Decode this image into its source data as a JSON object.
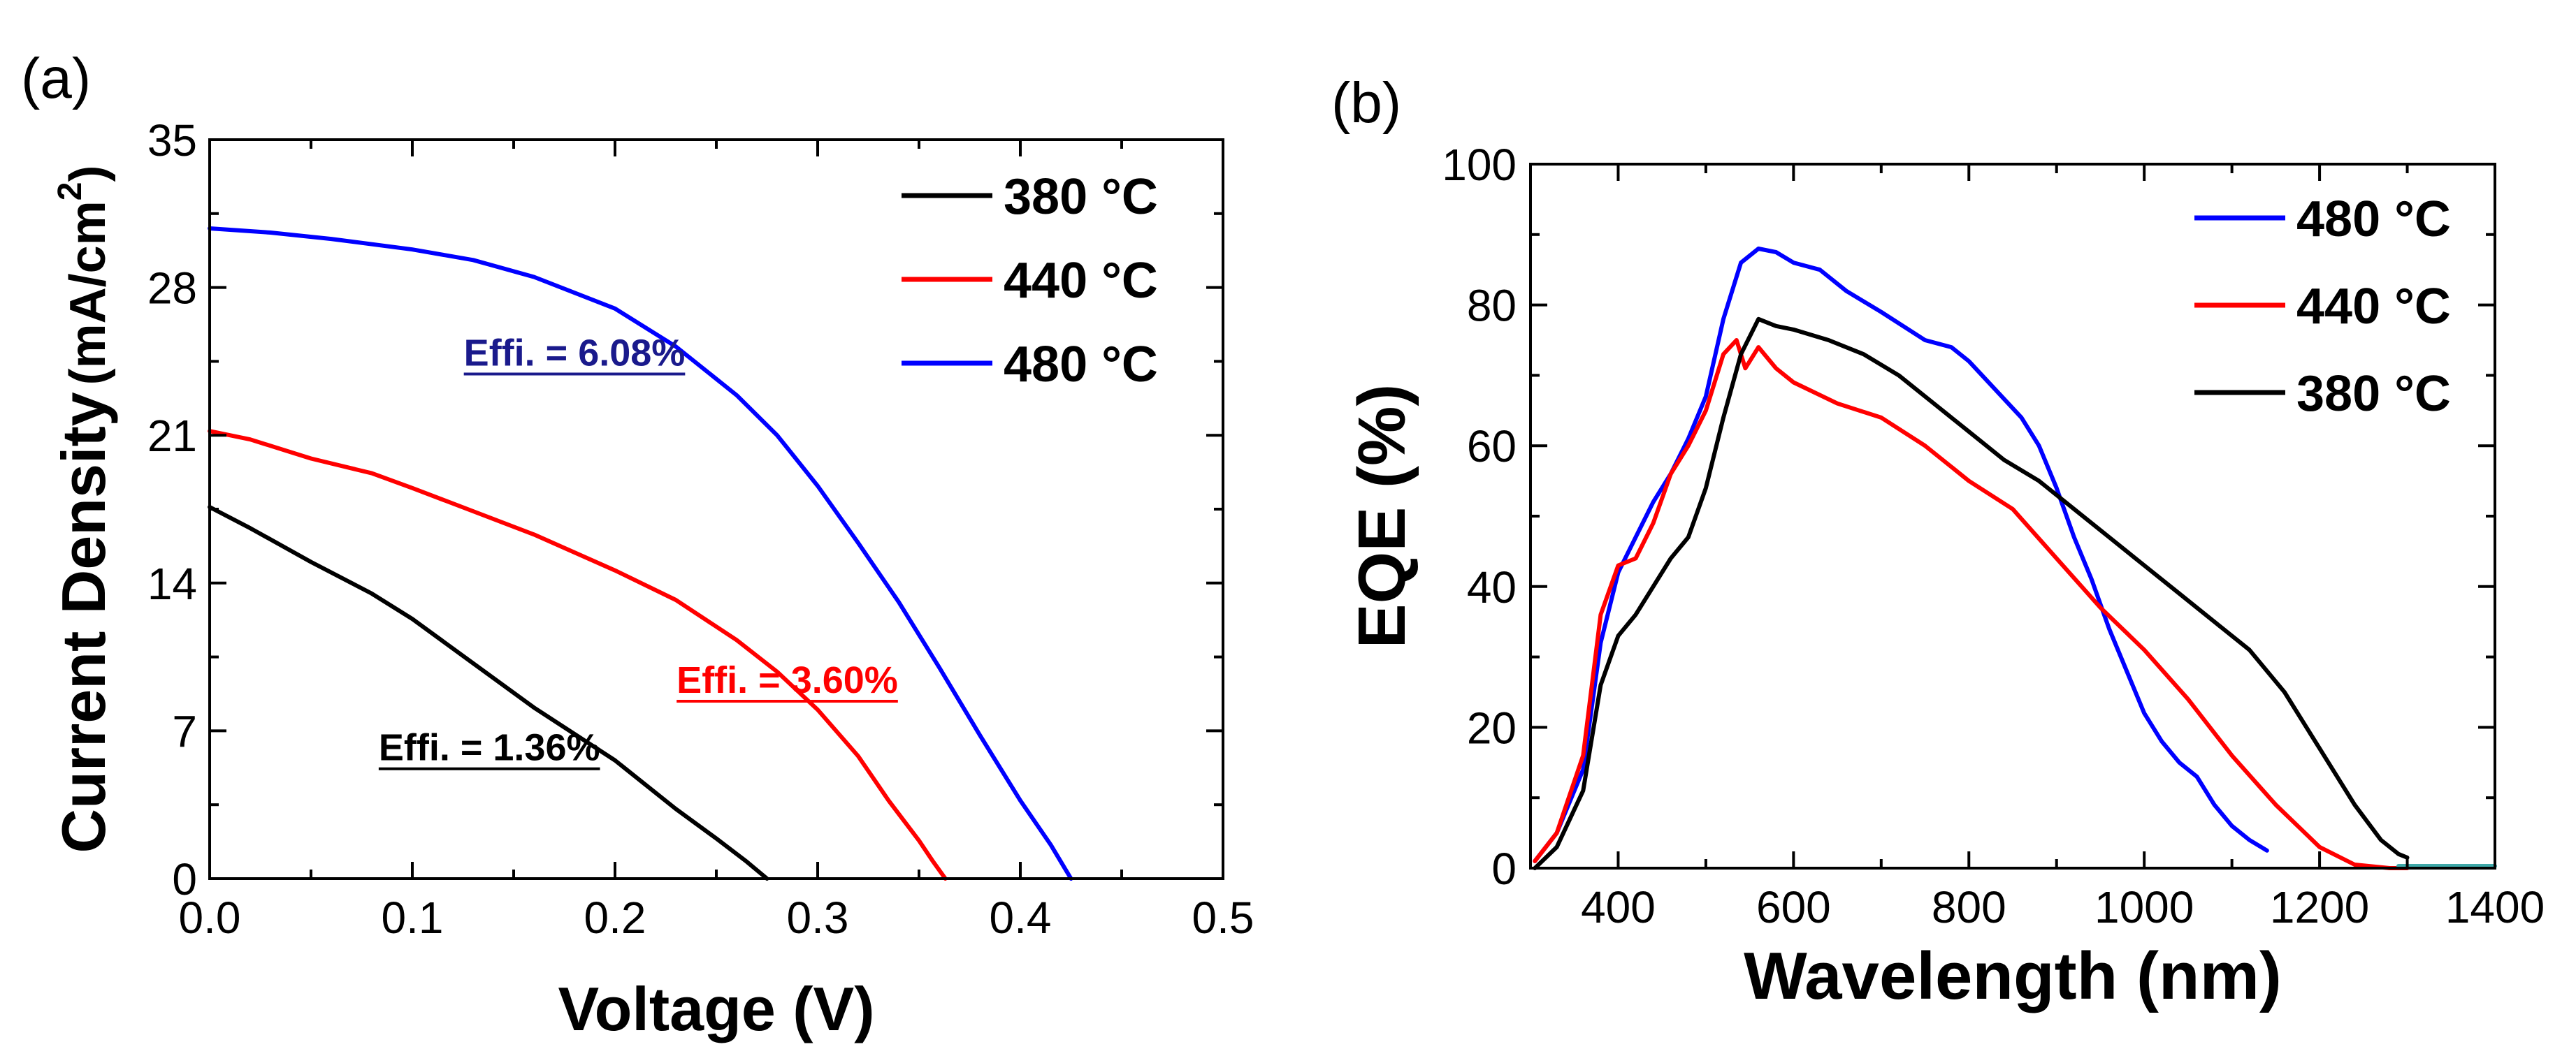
{
  "chart_data": [
    {
      "panel_label": "(a)",
      "type": "line",
      "title": "",
      "xlabel": "Voltage (V)",
      "ylabel": "Current Density",
      "ylabel_unit": "(mA/cm",
      "ylabel_unit_sup": "2",
      "ylabel_unit_close": ")",
      "xlim": [
        0.0,
        0.5
      ],
      "ylim": [
        0,
        35
      ],
      "xticks": [
        0.0,
        0.1,
        0.2,
        0.3,
        0.4,
        0.5
      ],
      "xtick_labels": [
        "0.0",
        "0.1",
        "0.2",
        "0.3",
        "0.4",
        "0.5"
      ],
      "yticks": [
        0,
        7,
        14,
        21,
        28,
        35
      ],
      "ytick_labels": [
        "0",
        "7",
        "14",
        "21",
        "28",
        "35"
      ],
      "grid": false,
      "legend_position": "top-right",
      "series": [
        {
          "name": "380 °C",
          "color": "#000000",
          "points": [
            [
              0.0,
              17.6
            ],
            [
              0.02,
              16.6
            ],
            [
              0.05,
              15.0
            ],
            [
              0.08,
              13.5
            ],
            [
              0.1,
              12.3
            ],
            [
              0.13,
              10.2
            ],
            [
              0.16,
              8.1
            ],
            [
              0.2,
              5.6
            ],
            [
              0.23,
              3.3
            ],
            [
              0.25,
              1.9
            ],
            [
              0.265,
              0.8
            ],
            [
              0.275,
              0.0
            ]
          ]
        },
        {
          "name": "440 °C",
          "color": "#ff0000",
          "points": [
            [
              0.0,
              21.2
            ],
            [
              0.02,
              20.8
            ],
            [
              0.05,
              19.9
            ],
            [
              0.08,
              19.2
            ],
            [
              0.1,
              18.5
            ],
            [
              0.13,
              17.4
            ],
            [
              0.16,
              16.3
            ],
            [
              0.2,
              14.6
            ],
            [
              0.23,
              13.2
            ],
            [
              0.26,
              11.3
            ],
            [
              0.28,
              9.8
            ],
            [
              0.3,
              8.0
            ],
            [
              0.32,
              5.8
            ],
            [
              0.335,
              3.7
            ],
            [
              0.35,
              1.8
            ],
            [
              0.357,
              0.8
            ],
            [
              0.363,
              0.0
            ]
          ]
        },
        {
          "name": "480 °C",
          "color": "#0000ff",
          "points": [
            [
              0.0,
              30.8
            ],
            [
              0.03,
              30.6
            ],
            [
              0.06,
              30.3
            ],
            [
              0.1,
              29.8
            ],
            [
              0.13,
              29.3
            ],
            [
              0.16,
              28.5
            ],
            [
              0.2,
              27.0
            ],
            [
              0.23,
              25.2
            ],
            [
              0.26,
              22.9
            ],
            [
              0.28,
              21.0
            ],
            [
              0.3,
              18.6
            ],
            [
              0.32,
              15.9
            ],
            [
              0.34,
              13.1
            ],
            [
              0.36,
              10.0
            ],
            [
              0.38,
              6.8
            ],
            [
              0.4,
              3.7
            ],
            [
              0.415,
              1.6
            ],
            [
              0.425,
              0.0
            ]
          ]
        }
      ],
      "annotations": [
        {
          "text": "Effi. = 6.08%",
          "color": "#1a1a8c",
          "x": 0.18,
          "y": 24.3
        },
        {
          "text": "Effi. = 3.60%",
          "color": "#ff0000",
          "x": 0.285,
          "y": 8.8
        },
        {
          "text": "Effi. = 1.36%",
          "color": "#000000",
          "x": 0.138,
          "y": 5.6
        }
      ]
    },
    {
      "panel_label": "(b)",
      "type": "line",
      "title": "",
      "xlabel": "Wavelength (nm)",
      "ylabel": "EQE (%)",
      "xlim": [
        300,
        1400
      ],
      "ylim": [
        0,
        100
      ],
      "xticks": [
        400,
        600,
        800,
        1000,
        1200,
        1400
      ],
      "xtick_labels": [
        "400",
        "600",
        "800",
        "1000",
        "1200",
        "1400"
      ],
      "yticks": [
        0,
        20,
        40,
        60,
        80,
        100
      ],
      "ytick_labels": [
        "0",
        "20",
        "40",
        "60",
        "80",
        "100"
      ],
      "grid": false,
      "legend_position": "top-right",
      "series": [
        {
          "name": "480 °C",
          "color": "#0000ff",
          "points": [
            [
              305,
              1
            ],
            [
              330,
              5
            ],
            [
              360,
              14
            ],
            [
              380,
              32
            ],
            [
              400,
              42
            ],
            [
              420,
              47
            ],
            [
              440,
              52
            ],
            [
              460,
              56
            ],
            [
              480,
              61
            ],
            [
              500,
              67
            ],
            [
              520,
              78
            ],
            [
              540,
              86
            ],
            [
              560,
              88
            ],
            [
              580,
              87.5
            ],
            [
              600,
              86
            ],
            [
              630,
              85
            ],
            [
              660,
              82
            ],
            [
              700,
              79
            ],
            [
              750,
              75
            ],
            [
              780,
              74
            ],
            [
              800,
              72
            ],
            [
              830,
              68
            ],
            [
              860,
              64
            ],
            [
              880,
              60
            ],
            [
              900,
              54
            ],
            [
              920,
              47
            ],
            [
              940,
              41
            ],
            [
              960,
              34
            ],
            [
              980,
              28
            ],
            [
              1000,
              22
            ],
            [
              1020,
              18
            ],
            [
              1040,
              15
            ],
            [
              1060,
              13
            ],
            [
              1080,
              9
            ],
            [
              1100,
              6
            ],
            [
              1120,
              4
            ],
            [
              1140,
              2.5
            ]
          ]
        },
        {
          "name": "440 °C",
          "color": "#ff0000",
          "points": [
            [
              305,
              1
            ],
            [
              330,
              5
            ],
            [
              360,
              16
            ],
            [
              380,
              36
            ],
            [
              400,
              43
            ],
            [
              420,
              44
            ],
            [
              440,
              49
            ],
            [
              460,
              56
            ],
            [
              480,
              60
            ],
            [
              500,
              65
            ],
            [
              520,
              73
            ],
            [
              535,
              75
            ],
            [
              545,
              71
            ],
            [
              560,
              74
            ],
            [
              580,
              71
            ],
            [
              600,
              69
            ],
            [
              650,
              66
            ],
            [
              700,
              64
            ],
            [
              750,
              60
            ],
            [
              800,
              55
            ],
            [
              850,
              51
            ],
            [
              900,
              44
            ],
            [
              950,
              37
            ],
            [
              1000,
              31
            ],
            [
              1050,
              24
            ],
            [
              1100,
              16
            ],
            [
              1150,
              9
            ],
            [
              1200,
              3
            ],
            [
              1240,
              0.5
            ],
            [
              1280,
              0
            ],
            [
              1300,
              0
            ]
          ]
        },
        {
          "name": "380 °C",
          "color": "#000000",
          "points": [
            [
              305,
              0
            ],
            [
              330,
              3
            ],
            [
              360,
              11
            ],
            [
              380,
              26
            ],
            [
              400,
              33
            ],
            [
              420,
              36
            ],
            [
              440,
              40
            ],
            [
              460,
              44
            ],
            [
              480,
              47
            ],
            [
              500,
              54
            ],
            [
              520,
              64
            ],
            [
              540,
              73
            ],
            [
              560,
              78
            ],
            [
              580,
              77
            ],
            [
              600,
              76.5
            ],
            [
              640,
              75
            ],
            [
              680,
              73
            ],
            [
              720,
              70
            ],
            [
              760,
              66
            ],
            [
              800,
              62
            ],
            [
              840,
              58
            ],
            [
              880,
              55
            ],
            [
              920,
              51
            ],
            [
              960,
              47
            ],
            [
              1000,
              43
            ],
            [
              1040,
              39
            ],
            [
              1080,
              35
            ],
            [
              1120,
              31
            ],
            [
              1160,
              25
            ],
            [
              1200,
              17
            ],
            [
              1240,
              9
            ],
            [
              1270,
              4
            ],
            [
              1290,
              2
            ],
            [
              1300,
              1.5
            ]
          ]
        },
        {
          "name": "baseline",
          "color": "#3fa8a8",
          "show_in_legend": false,
          "points": [
            [
              1290,
              0.3
            ],
            [
              1400,
              0.3
            ]
          ]
        }
      ]
    }
  ]
}
